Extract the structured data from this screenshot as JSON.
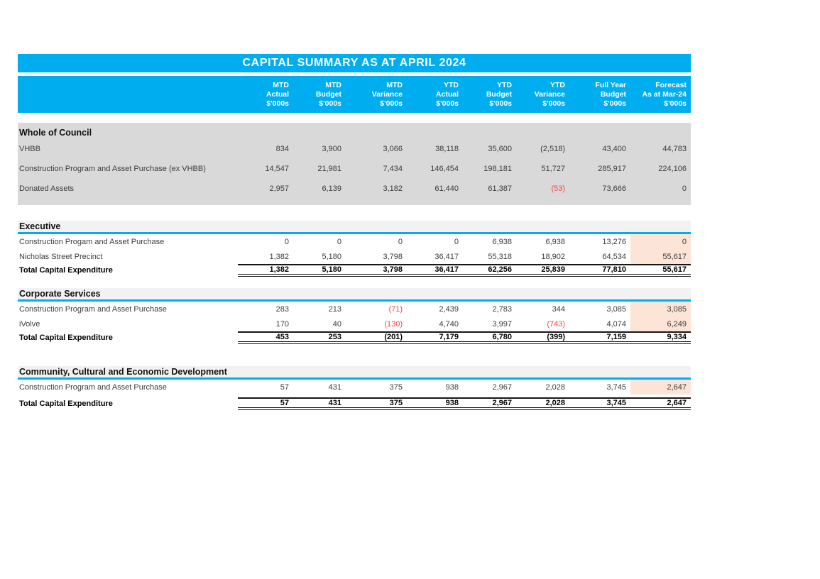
{
  "title": "CAPITAL SUMMARY AS AT APRIL 2024",
  "colors": {
    "accent_cyan": "#00AEEF",
    "section_block_gray": "#D9D9D9",
    "section_header_gray": "#F2F2F2",
    "forecast_highlight_peach": "#FCE4D6",
    "negative_red": "#F04641"
  },
  "columns": [
    {
      "line1": "MTD",
      "line2": "Actual",
      "line3": "$'000s"
    },
    {
      "line1": "MTD",
      "line2": "Budget",
      "line3": "$'000s"
    },
    {
      "line1": "MTD",
      "line2": "Variance",
      "line3": "$'000s"
    },
    {
      "line1": "YTD",
      "line2": "Actual",
      "line3": "$'000s"
    },
    {
      "line1": "YTD",
      "line2": "Budget",
      "line3": "$'000s"
    },
    {
      "line1": "YTD",
      "line2": "Variance",
      "line3": "$'000s"
    },
    {
      "line1": "Full Year",
      "line2": "Budget",
      "line3": "$'000s"
    },
    {
      "line1": "Forecast",
      "line2": "As at Mar-24",
      "line3": "$'000s"
    }
  ],
  "sections": [
    {
      "id": "whole-of-council",
      "name": "Whole of Council",
      "style": "gray",
      "highlight_forecast": false,
      "rows": [
        {
          "label": "VHBB",
          "total": false,
          "red": [],
          "values": [
            "834",
            "3,900",
            "3,066",
            "38,118",
            "35,600",
            "(2,518)",
            "43,400",
            "44,783"
          ]
        },
        {
          "label": "Construction Program and Asset Purchase (ex VHBB)",
          "total": false,
          "red": [],
          "values": [
            "14,547",
            "21,981",
            "7,434",
            "146,454",
            "198,181",
            "51,727",
            "285,917",
            "224,106"
          ]
        },
        {
          "label": "Donated Assets",
          "total": false,
          "red": [
            5
          ],
          "values": [
            "2,957",
            "6,139",
            "3,182",
            "61,440",
            "61,387",
            "(53)",
            "73,666",
            "0"
          ]
        }
      ]
    },
    {
      "id": "executive",
      "name": "Executive",
      "style": "white",
      "highlight_forecast": true,
      "rows": [
        {
          "label": "Construction Progam and Asset Purchase",
          "total": false,
          "red": [],
          "values": [
            "0",
            "0",
            "0",
            "0",
            "6,938",
            "6,938",
            "13,276",
            "0"
          ]
        },
        {
          "label": "Nicholas Street Precinct",
          "total": false,
          "red": [],
          "values": [
            "1,382",
            "5,180",
            "3,798",
            "36,417",
            "55,318",
            "18,902",
            "64,534",
            "55,617"
          ]
        },
        {
          "label": "Total Capital Expenditure",
          "total": true,
          "red": [],
          "values": [
            "1,382",
            "5,180",
            "3,798",
            "36,417",
            "62,256",
            "25,839",
            "77,810",
            "55,617"
          ]
        }
      ]
    },
    {
      "id": "corporate-services",
      "name": "Corporate Services",
      "style": "white",
      "highlight_forecast": true,
      "rows": [
        {
          "label": "Construction Program and Asset Purchase",
          "total": false,
          "red": [
            2
          ],
          "values": [
            "283",
            "213",
            "(71)",
            "2,439",
            "2,783",
            "344",
            "3,085",
            "3,085"
          ]
        },
        {
          "label": "iVolve",
          "total": false,
          "red": [
            2,
            5
          ],
          "values": [
            "170",
            "40",
            "(130)",
            "4,740",
            "3,997",
            "(743)",
            "4,074",
            "6,249"
          ]
        },
        {
          "label": "Total Capital Expenditure",
          "total": true,
          "red": [],
          "values": [
            "453",
            "253",
            "(201)",
            "7,179",
            "6,780",
            "(399)",
            "7,159",
            "9,334"
          ]
        }
      ]
    },
    {
      "id": "community",
      "name": "Community, Cultural and Economic Development",
      "style": "white",
      "highlight_forecast": true,
      "rows": [
        {
          "label": "Construction Program and Asset Purchase",
          "total": false,
          "red": [],
          "values": [
            "57",
            "431",
            "375",
            "938",
            "2,967",
            "2,028",
            "3,745",
            "2,647"
          ]
        },
        {
          "label": "Total Capital Expenditure",
          "total": true,
          "red": [],
          "values": [
            "57",
            "431",
            "375",
            "938",
            "2,967",
            "2,028",
            "3,745",
            "2,647"
          ]
        }
      ]
    }
  ]
}
